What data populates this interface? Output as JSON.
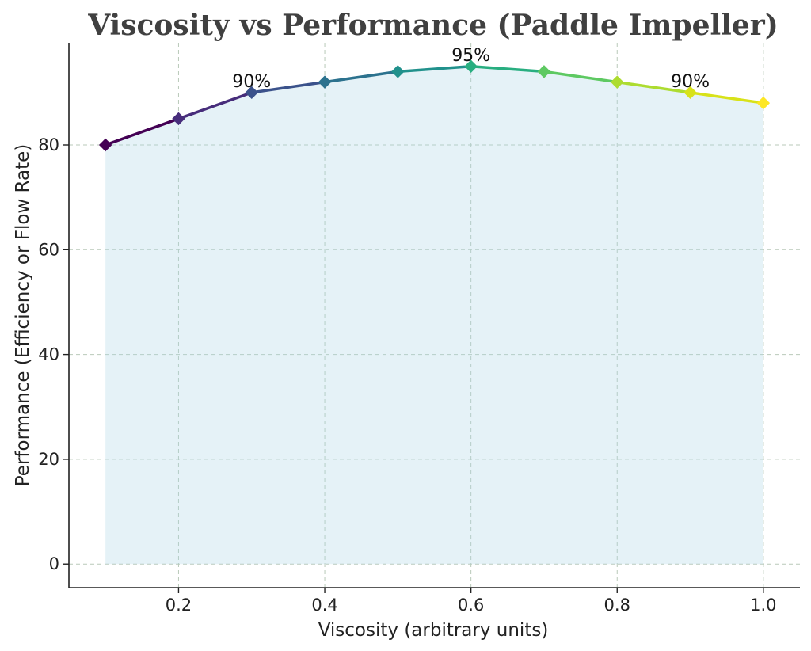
{
  "chart_data": {
    "type": "line",
    "title": "Viscosity vs Performance (Paddle Impeller)",
    "xlabel": "Viscosity (arbitrary units)",
    "ylabel": "Performance (Efficiency or Flow Rate)",
    "x": [
      0.1,
      0.2,
      0.3,
      0.4,
      0.5,
      0.6,
      0.7,
      0.8,
      0.9,
      1.0
    ],
    "series": [
      {
        "values": [
          80,
          85,
          90,
          92,
          94,
          95,
          94,
          92,
          90,
          88
        ]
      }
    ],
    "xlim": [
      0.05,
      1.05
    ],
    "ylim": [
      -4.5,
      99.5
    ],
    "xticks": [
      "0.2",
      "0.4",
      "0.6",
      "0.8",
      "1.0"
    ],
    "xtick_values": [
      0.2,
      0.4,
      0.6,
      0.8,
      1.0
    ],
    "yticks": [
      "0",
      "20",
      "40",
      "60",
      "80"
    ],
    "ytick_values": [
      0,
      20,
      40,
      60,
      80
    ],
    "annotations": [
      {
        "x": 0.3,
        "y": 90,
        "text": "90%"
      },
      {
        "x": 0.6,
        "y": 95,
        "text": "95%"
      },
      {
        "x": 0.9,
        "y": 90,
        "text": "90%"
      }
    ],
    "grid": true,
    "area_fill": true,
    "marker": "diamond",
    "colormap": "viridis",
    "point_colors": [
      "#440154",
      "#472d7b",
      "#3b528b",
      "#2c728e",
      "#21918c",
      "#28ae80",
      "#5ec962",
      "#addc30",
      "#d8e219",
      "#fde725"
    ],
    "fill_color": "#add8e6"
  }
}
